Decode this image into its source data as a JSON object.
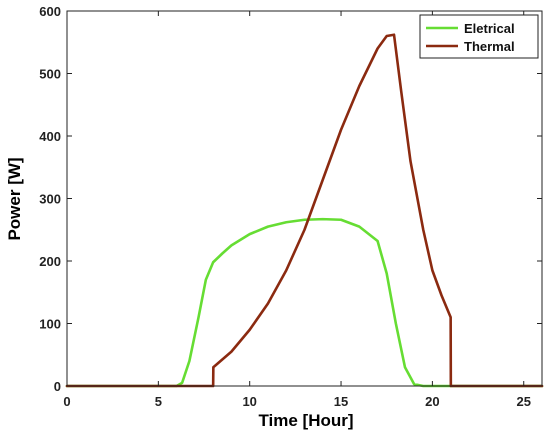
{
  "chart_data": {
    "type": "line",
    "title": "",
    "xlabel": "Time [Hour]",
    "ylabel": "Power [W]",
    "xlim": [
      0,
      26
    ],
    "ylim": [
      0,
      600
    ],
    "xticks": [
      0,
      5,
      10,
      15,
      20,
      25
    ],
    "yticks": [
      0,
      100,
      200,
      300,
      400,
      500,
      600
    ],
    "grid": false,
    "legend_position": "top-right",
    "series": [
      {
        "name": "Eletrical",
        "color": "#66dd33",
        "points": [
          [
            0,
            0
          ],
          [
            6.0,
            0
          ],
          [
            6.3,
            5
          ],
          [
            6.7,
            40
          ],
          [
            7.2,
            110
          ],
          [
            7.6,
            170
          ],
          [
            8.0,
            198
          ],
          [
            8.5,
            212
          ],
          [
            9.0,
            225
          ],
          [
            10.0,
            243
          ],
          [
            11.0,
            255
          ],
          [
            12.0,
            262
          ],
          [
            13.0,
            266
          ],
          [
            14.0,
            267
          ],
          [
            15.0,
            266
          ],
          [
            16.0,
            255
          ],
          [
            17.0,
            232
          ],
          [
            17.5,
            180
          ],
          [
            18.0,
            100
          ],
          [
            18.5,
            30
          ],
          [
            19.0,
            3
          ],
          [
            19.5,
            0
          ],
          [
            26,
            0
          ]
        ]
      },
      {
        "name": "Thermal",
        "color": "#8b2a10",
        "points": [
          [
            0,
            0
          ],
          [
            8.0,
            0
          ],
          [
            8.01,
            30
          ],
          [
            9.0,
            55
          ],
          [
            10.0,
            90
          ],
          [
            11.0,
            132
          ],
          [
            12.0,
            185
          ],
          [
            13.0,
            250
          ],
          [
            14.0,
            330
          ],
          [
            15.0,
            410
          ],
          [
            16.0,
            480
          ],
          [
            17.0,
            540
          ],
          [
            17.5,
            560
          ],
          [
            17.9,
            562
          ],
          [
            18.3,
            470
          ],
          [
            18.8,
            360
          ],
          [
            19.5,
            250
          ],
          [
            20.0,
            185
          ],
          [
            20.5,
            145
          ],
          [
            21.0,
            110
          ],
          [
            21.01,
            0
          ],
          [
            26,
            0
          ]
        ]
      }
    ]
  }
}
